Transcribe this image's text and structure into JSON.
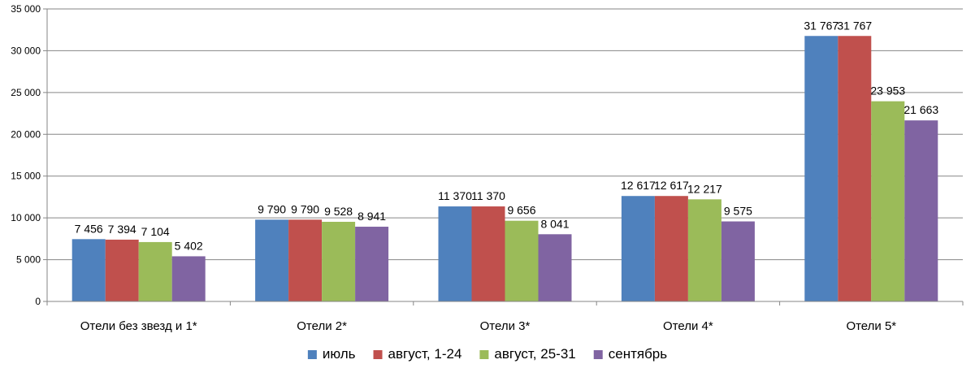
{
  "chart_data": {
    "type": "bar",
    "categories": [
      "Отели без звезд и 1*",
      "Отели 2*",
      "Отели 3*",
      "Отели 4*",
      "Отели 5*"
    ],
    "series": [
      {
        "name": "июль",
        "color": "#4f81bd",
        "values": [
          7456,
          9790,
          11370,
          12617,
          31767
        ],
        "labels": [
          "7 456",
          "9 790",
          "11 370",
          "12 617",
          "31 767"
        ]
      },
      {
        "name": "август, 1-24",
        "color": "#c0504d",
        "values": [
          7394,
          9790,
          11370,
          12617,
          31767
        ],
        "labels": [
          "7 394",
          "9 790",
          "11 370",
          "12 617",
          "31 767"
        ]
      },
      {
        "name": "август, 25-31",
        "color": "#9bbb59",
        "values": [
          7104,
          9528,
          9656,
          12217,
          23953
        ],
        "labels": [
          "7 104",
          "9 528",
          "9 656",
          "12 217",
          "23 953"
        ]
      },
      {
        "name": "сентябрь",
        "color": "#8064a2",
        "values": [
          5402,
          8941,
          8041,
          9575,
          21663
        ],
        "labels": [
          "5 402",
          "8 941",
          "8 041",
          "9 575",
          "21 663"
        ]
      }
    ],
    "ylim": [
      0,
      35000
    ],
    "yticks": [
      0,
      5000,
      10000,
      15000,
      20000,
      25000,
      30000,
      35000
    ],
    "ytick_labels": [
      "0",
      "5 000",
      "10 000",
      "15 000",
      "20 000",
      "25 000",
      "30 000",
      "35 000"
    ],
    "grid": true,
    "legend": "bottom",
    "title": "",
    "xlabel": "",
    "ylabel": ""
  }
}
